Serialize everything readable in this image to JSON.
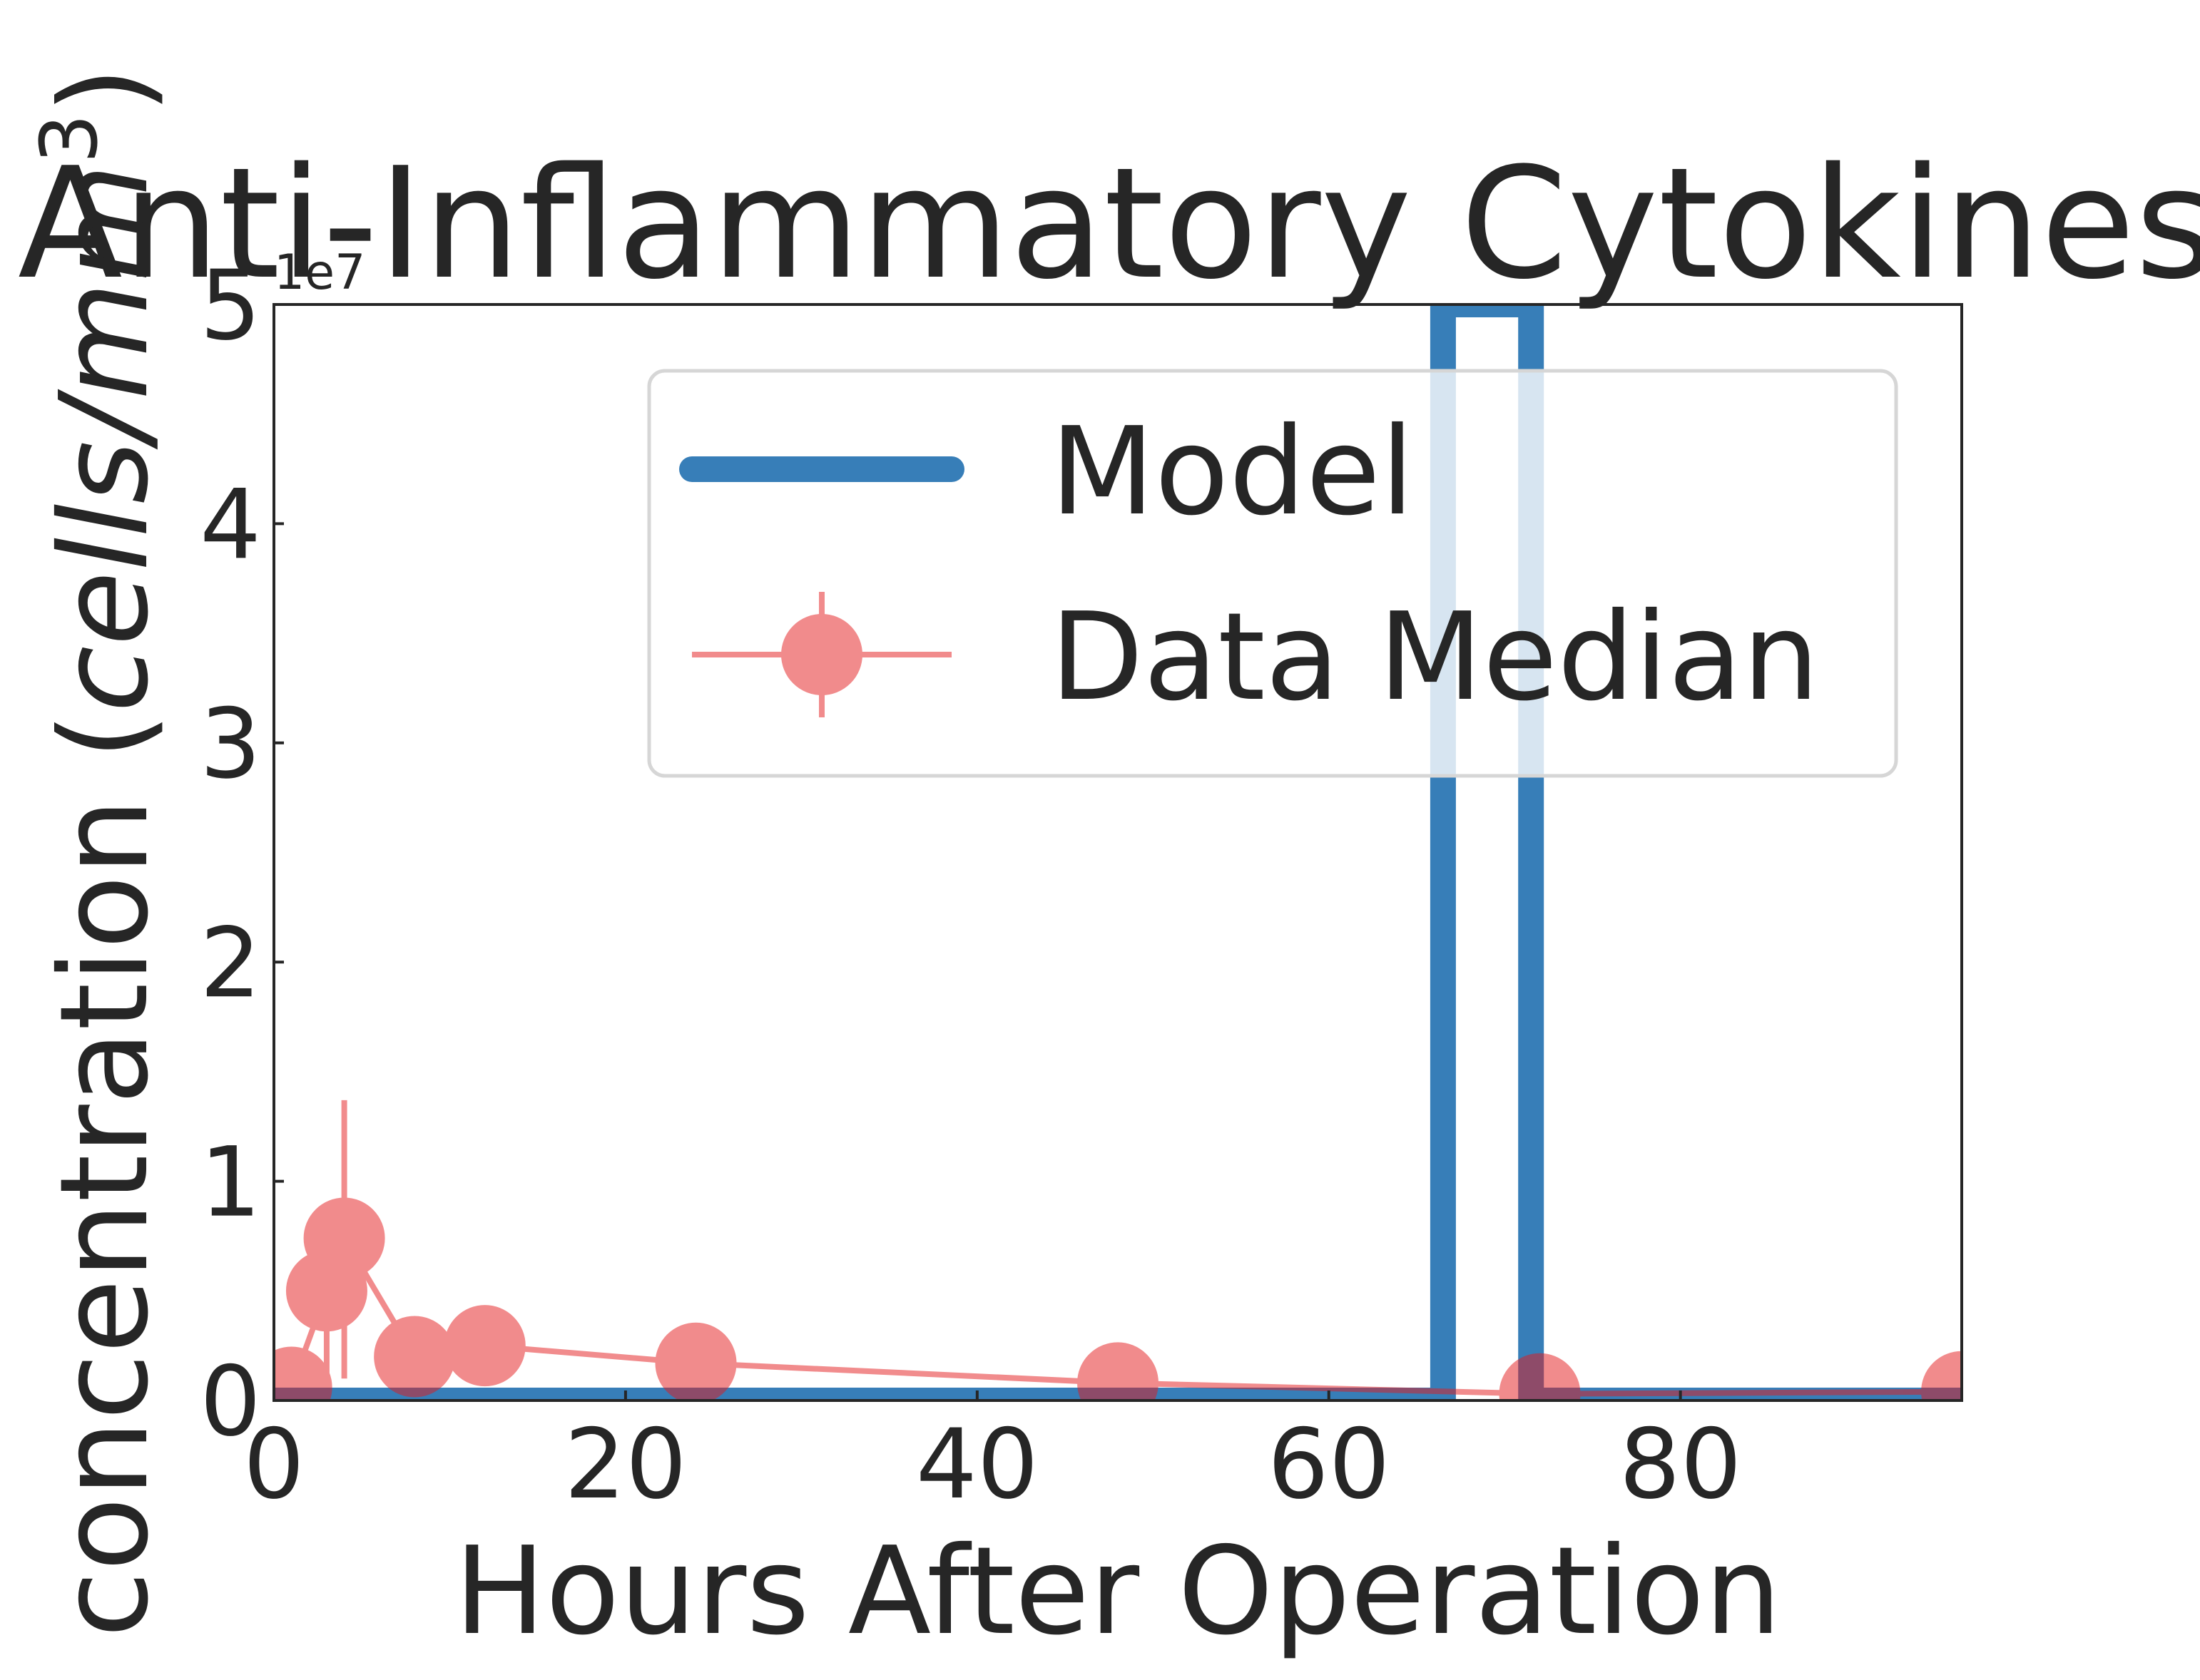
{
  "chart_data": {
    "type": "line",
    "title": "Anti-Inflammatory Cytokines",
    "xlabel": "Hours After Operation",
    "ylabel_prefix": "concentration (",
    "ylabel_unit": "cells/mm",
    "ylabel_exp": "3",
    "ylabel_suffix": ")",
    "y_offset_label": "1e7",
    "xlim": [
      0,
      96
    ],
    "ylim": [
      0,
      5
    ],
    "y_multiplier": 10000000,
    "xticks": [
      0,
      20,
      40,
      60,
      80
    ],
    "xtick_labels": [
      "0",
      "20",
      "40",
      "60",
      "80"
    ],
    "yticks": [
      0,
      1,
      2,
      3,
      4,
      5
    ],
    "ytick_labels": [
      "0",
      "1",
      "2",
      "3",
      "4",
      "5"
    ],
    "grid": false,
    "legend": {
      "position": "upper right",
      "entries": [
        "Model",
        "Data Median"
      ]
    },
    "series": [
      {
        "name": "Model",
        "kind": "line",
        "color": "#377eb8",
        "x": [
          0,
          15,
          62.5,
          66.5,
          66.5,
          71.5,
          71.5,
          96
        ],
        "y": [
          0.0,
          0.0,
          0.0,
          0.0,
          5.0,
          5.0,
          0.0,
          0.0
        ]
      },
      {
        "name": "Data Median",
        "kind": "errorbar",
        "color": "#e41a1c",
        "x": [
          0,
          1,
          3,
          4,
          8,
          12,
          24,
          48,
          72,
          96
        ],
        "y": [
          0.02,
          0.06,
          0.5,
          0.74,
          0.2,
          0.25,
          0.17,
          0.08,
          0.03,
          0.04
        ],
        "yerr_low": [
          0.01,
          0.03,
          0.1,
          0.1,
          0.05,
          0.1,
          0.05,
          0.03,
          0.02,
          0.02
        ],
        "yerr_high": [
          0.03,
          0.1,
          0.85,
          1.37,
          0.3,
          0.33,
          0.26,
          0.1,
          0.04,
          0.05
        ]
      }
    ]
  }
}
